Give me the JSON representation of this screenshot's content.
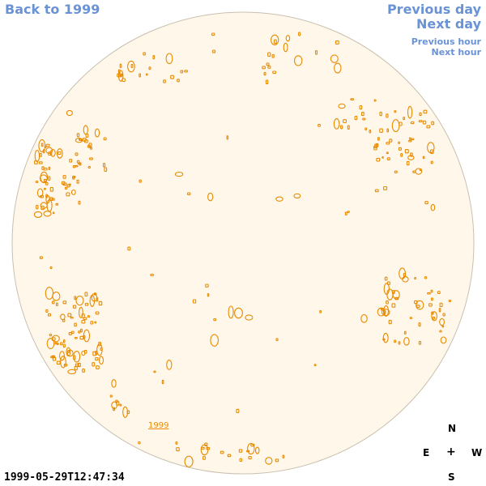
{
  "nav": {
    "back": "Back to 1999",
    "previous_day": "Previous day",
    "next_day": "Next day",
    "previous_hour": "Previous hour",
    "next_hour": "Next hour"
  },
  "disk": {
    "year_label": "1999"
  },
  "compass": {
    "north": "N",
    "east": "E",
    "center": "+",
    "west": "W",
    "south": "S"
  },
  "timestamp": "1999-05-29T12:47:34",
  "colors": {
    "link": "#6a93d6",
    "disk_fill": "#fff8ea",
    "disk_stroke": "#c9bfae",
    "magnetogram": "#e88a00"
  }
}
